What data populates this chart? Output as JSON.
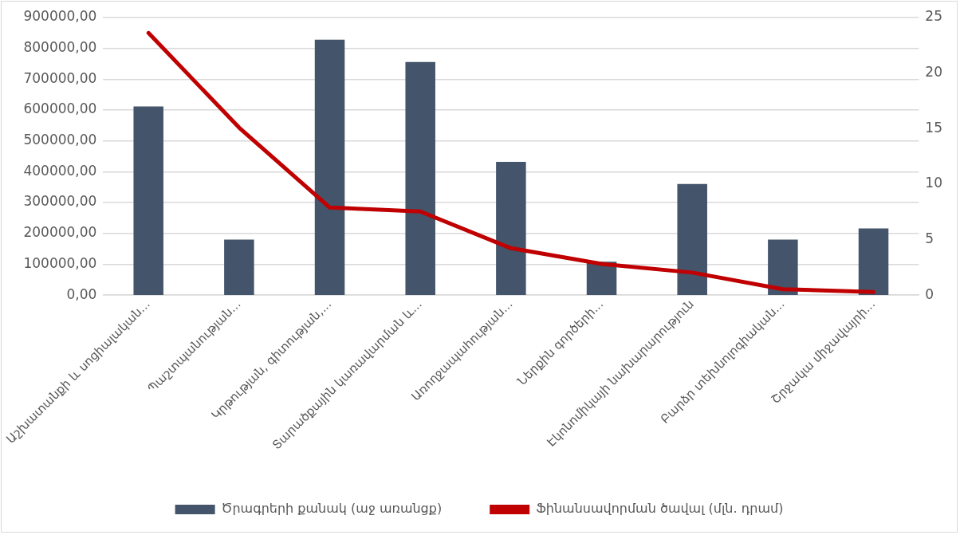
{
  "chart_data": {
    "type": "bar",
    "categories": [
      "Աշխատանքի և սոցիալական...",
      "Պաշտպանության...",
      "Կրթության, գիտության,...",
      "Տարածքային կառավարման և...",
      "Առողջապահության...",
      "Ներքին գործերի...",
      "Էկոնոմիկայի նախարարություն",
      "Բարձր տեխնոլոգիական...",
      "Շրջակա միջավայրի..."
    ],
    "series": [
      {
        "name": "Ծրագրերի քանակ (աջ առանցք)",
        "axis": "y2",
        "color": "#44546a",
        "values": [
          17,
          5,
          23,
          21,
          12,
          3,
          10,
          5,
          6
        ]
      },
      {
        "name": "Ֆինանսավորման ծավալ (մլն. դրամ)",
        "type": "line",
        "color": "#c00000",
        "values": [
          850000,
          543000,
          284000,
          271000,
          152000,
          101000,
          73000,
          19000,
          10000
        ]
      }
    ],
    "ylim": [
      0,
      900000
    ],
    "yticks": [
      {
        "value": 0,
        "label": "0,00"
      },
      {
        "value": 100000,
        "label": "100000,00"
      },
      {
        "value": 200000,
        "label": "200000,00"
      },
      {
        "value": 300000,
        "label": "300000,00"
      },
      {
        "value": 400000,
        "label": "400000,00"
      },
      {
        "value": 500000,
        "label": "500000,00"
      },
      {
        "value": 600000,
        "label": "600000,00"
      },
      {
        "value": 700000,
        "label": "700000,00"
      },
      {
        "value": 800000,
        "label": "800000,00"
      },
      {
        "value": 900000,
        "label": "900000,00"
      }
    ],
    "y2lim": [
      0,
      25
    ],
    "y2ticks": [
      0,
      5,
      10,
      15,
      20,
      25
    ],
    "grid": "y",
    "legend": "bottom",
    "marker": "none",
    "line_style": "solid"
  }
}
